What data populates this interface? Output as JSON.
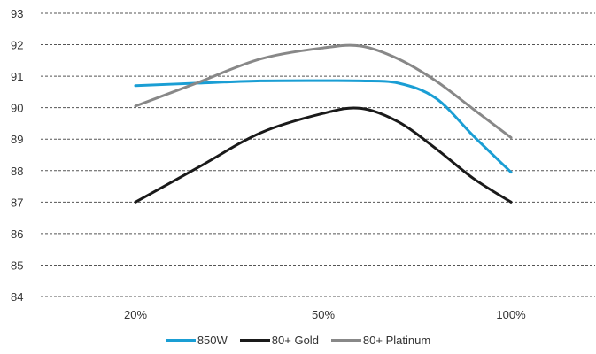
{
  "chart_data": {
    "type": "line",
    "categories": [
      "20%",
      "50%",
      "100%"
    ],
    "x": [
      20,
      50,
      100
    ],
    "ylim": [
      84,
      93
    ],
    "yticks": [
      "84",
      "85",
      "86",
      "87",
      "88",
      "89",
      "90",
      "91",
      "92",
      "93"
    ],
    "grid": "horizontal dashed",
    "legend": "bottom-center",
    "series": [
      {
        "name": "850W",
        "color": "#1a9ed4",
        "x": [
          20,
          30,
          40,
          50,
          60,
          70,
          80,
          90,
          100
        ],
        "y": [
          90.7,
          90.78,
          90.85,
          90.86,
          90.85,
          90.78,
          90.3,
          89.1,
          87.95
        ]
      },
      {
        "name": "80+ Gold",
        "color": "#1a1a1a",
        "x": [
          20,
          30,
          40,
          50,
          60,
          70,
          80,
          90,
          100
        ],
        "y": [
          87.0,
          88.1,
          89.2,
          89.82,
          89.98,
          89.55,
          88.7,
          87.75,
          87.0
        ]
      },
      {
        "name": "80+ Platinum",
        "color": "#888888",
        "x": [
          20,
          30,
          40,
          50,
          60,
          70,
          80,
          90,
          100
        ],
        "y": [
          90.05,
          90.8,
          91.55,
          91.9,
          91.96,
          91.55,
          90.85,
          89.95,
          89.05
        ]
      }
    ]
  }
}
